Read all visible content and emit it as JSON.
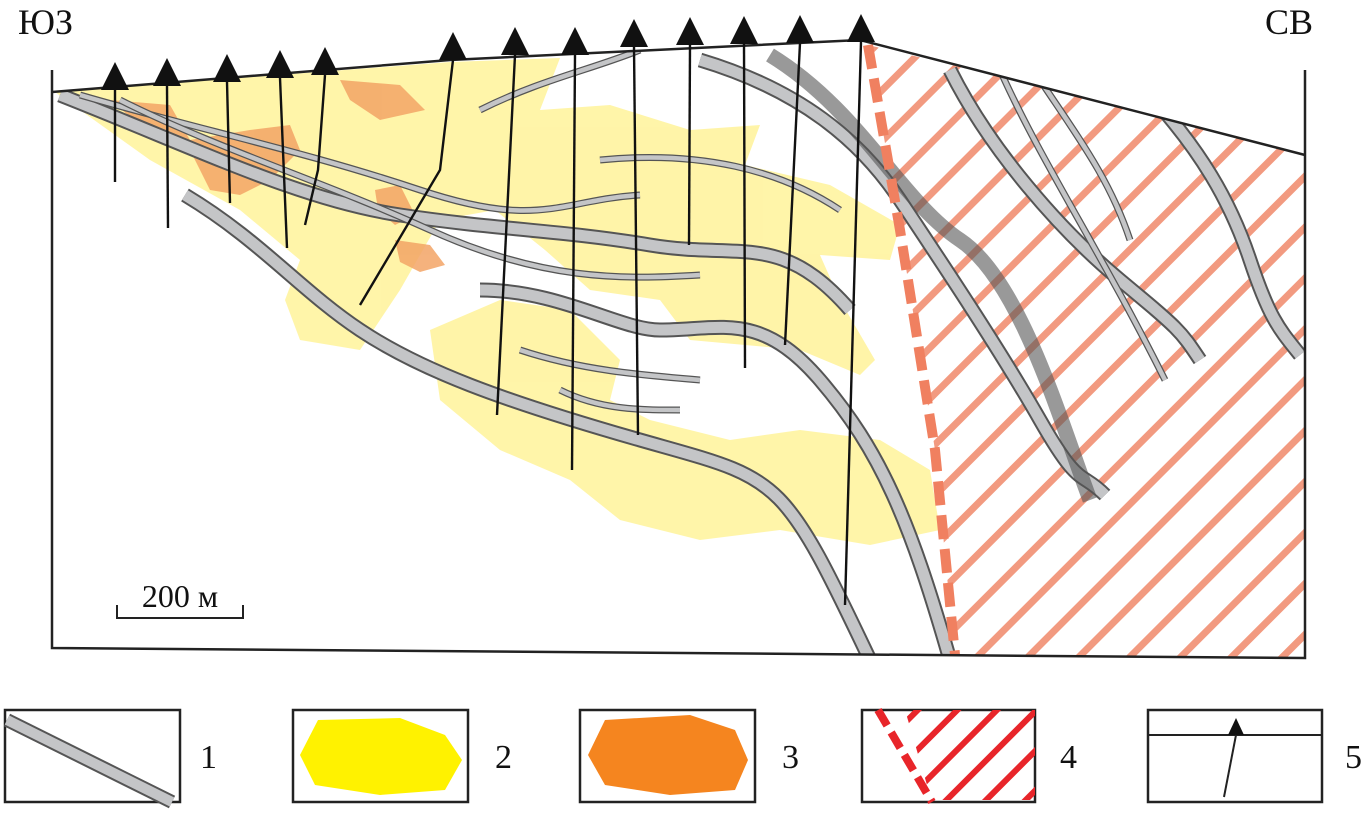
{
  "labels": {
    "left": "ЮЗ",
    "right": "СВ"
  },
  "scale_bar": "200 м",
  "legend": [
    {
      "label": "1"
    },
    {
      "label": "2"
    },
    {
      "label": "3"
    },
    {
      "label": "4"
    },
    {
      "label": "5"
    }
  ]
}
